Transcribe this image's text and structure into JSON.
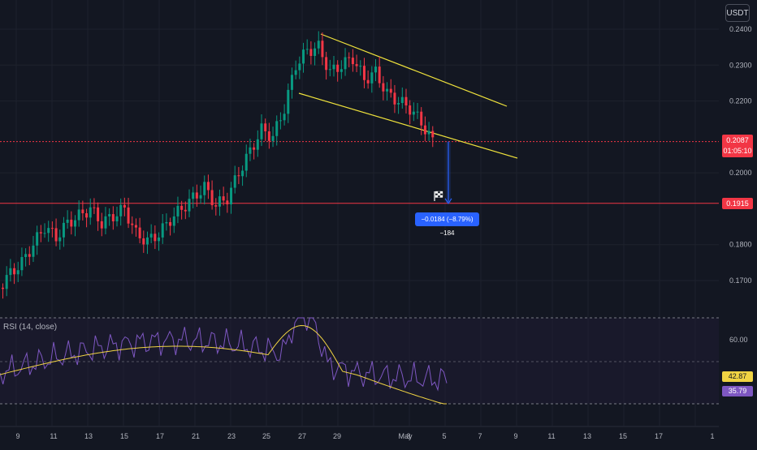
{
  "currency": "USDT",
  "last_price": "0.2087",
  "countdown": "01:05:10",
  "level_price": "0.1915",
  "measure_label": "−0.0184 (−8.79%) −184",
  "rsi": {
    "title": "RSI (14, close)",
    "value": "42.87",
    "ma_value": "35.79",
    "level_label": "60.00",
    "color_rsi": "#7e57c2",
    "color_ma": "#f0d343"
  },
  "colors": {
    "up": "#089981",
    "down": "#f23645",
    "channel": "#f0e33c",
    "measure": "#2962ff",
    "background": "#131722"
  },
  "chart_data": {
    "type": "candlestick",
    "y_axis": {
      "ticks": [
        "0.2400",
        "0.2300",
        "0.2200",
        "0.2000",
        "0.1800",
        "0.1700"
      ],
      "values": [
        0.24,
        0.23,
        0.22,
        0.2,
        0.18,
        0.17
      ],
      "range": [
        0.162,
        0.243
      ]
    },
    "x_axis": {
      "labels": [
        "9",
        "11",
        "13",
        "15",
        "17",
        "21",
        "23",
        "25",
        "27",
        "29",
        "May",
        "3",
        "5",
        "7",
        "9",
        "11",
        "13",
        "15",
        "17",
        "1"
      ]
    },
    "horizontal_levels": [
      0.2087,
      0.1915
    ],
    "channel": {
      "upper": [
        [
          0.2387,
          0.219
        ]
      ],
      "lower": [
        [
          0.2218,
          0.2028
        ]
      ]
    },
    "candles_close_path": [
      0.168,
      0.172,
      0.175,
      0.18,
      0.185,
      0.182,
      0.186,
      0.188,
      0.19,
      0.186,
      0.188,
      0.19,
      0.183,
      0.181,
      0.183,
      0.187,
      0.19,
      0.193,
      0.196,
      0.191,
      0.193,
      0.2,
      0.206,
      0.212,
      0.21,
      0.218,
      0.23,
      0.234,
      0.235,
      0.228,
      0.23,
      0.232,
      0.226,
      0.228,
      0.222,
      0.22,
      0.218,
      0.214,
      0.2087
    ]
  }
}
